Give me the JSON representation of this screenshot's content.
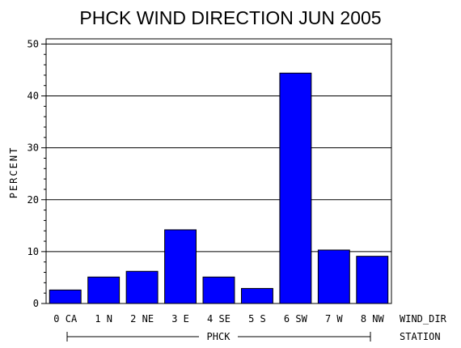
{
  "chart_data": {
    "type": "bar",
    "title": "PHCK WIND DIRECTION JUN 2005",
    "ylabel": "PERCENT",
    "xlabel": "WIND_DIR",
    "group_axis_label": "STATION",
    "group_label": "PHCK",
    "categories": [
      "0 CA",
      "1 N",
      "2 NE",
      "3 E",
      "4 SE",
      "5 S",
      "6 SW",
      "7 W",
      "8 NW"
    ],
    "values": [
      2.6,
      5.1,
      6.2,
      14.2,
      5.1,
      2.9,
      44.4,
      10.3,
      9.1
    ],
    "ylim": [
      0,
      51
    ],
    "yticks": [
      "0",
      "10",
      "20",
      "30",
      "40",
      "50"
    ],
    "grid": true,
    "bar_color": "#0000ff"
  }
}
